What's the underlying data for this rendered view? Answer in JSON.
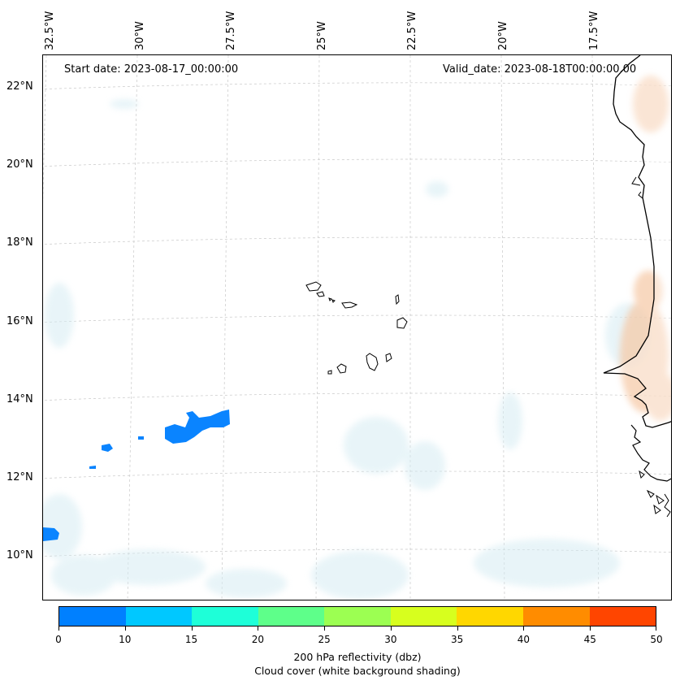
{
  "map": {
    "start_date": "Start date: 2023-08-17_00:00:00",
    "valid_date": "Valid_date: 2023-08-18T00:00:00.00",
    "longitude_labels": [
      "32.5°W",
      "30°W",
      "27.5°W",
      "25°W",
      "22.5°W",
      "20°W",
      "17.5°W"
    ],
    "latitude_labels": [
      "22°N",
      "20°N",
      "18°N",
      "16°N",
      "14°N",
      "12°N",
      "10°N"
    ],
    "features": {
      "coastline": "west-africa-coastline",
      "islands": "cape-verde-islands",
      "reflectivity_color": "#0a84ff",
      "cloud_shading_color": "#d6ecf3",
      "warm_shading_color": "#f6c8a4"
    }
  },
  "colorbar": {
    "colors": [
      "#0080ff",
      "#00c8ff",
      "#1effd8",
      "#5eff8a",
      "#9cff52",
      "#d7ff1e",
      "#ffd700",
      "#ff8c00",
      "#ff4500"
    ],
    "tick_labels": [
      "0",
      "10",
      "15",
      "20",
      "25",
      "30",
      "35",
      "40",
      "45",
      "50"
    ],
    "title_line1": "200 hPa reflectivity (dbz)",
    "title_line2": "Cloud cover (white background shading)"
  }
}
